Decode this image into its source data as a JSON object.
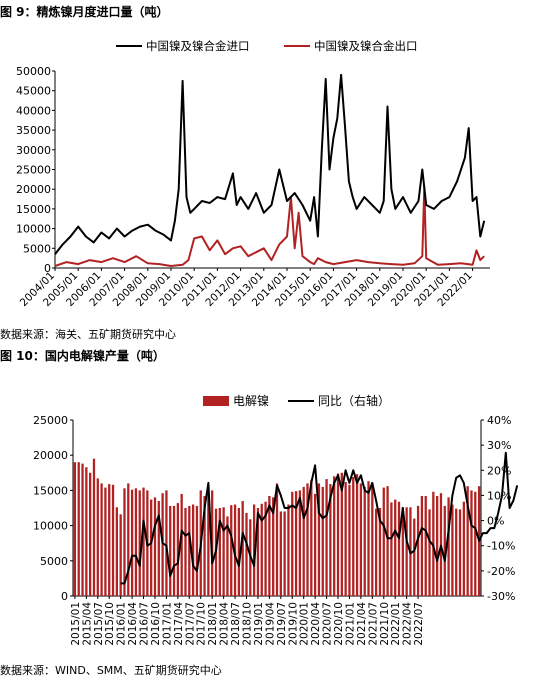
{
  "figure9": {
    "title": "图 9：精炼镍月度进口量（吨）",
    "source": "数据来源：海关、五矿期货研究中心",
    "chart_data": {
      "type": "line",
      "title": "",
      "legend_position": "top",
      "y_ticks": [
        "0",
        "5000",
        "10000",
        "15000",
        "20000",
        "25000",
        "30000",
        "35000",
        "40000",
        "45000",
        "50000"
      ],
      "ylim": [
        0,
        50000
      ],
      "x_ticks": [
        "2004/01",
        "2005/01",
        "2006/01",
        "2007/01",
        "2008/01",
        "2009/01",
        "2010/01",
        "2011/01",
        "2012/01",
        "2013/01",
        "2014/01",
        "2015/01",
        "2016/01",
        "2017/01",
        "2018/01",
        "2019/01",
        "2020/01",
        "2021/01",
        "2022/01"
      ],
      "series": [
        {
          "name": "中国镍及镍合金进口",
          "color": "#000000",
          "x": [
            2004.0,
            2004.33,
            2004.67,
            2005.0,
            2005.33,
            2005.67,
            2006.0,
            2006.33,
            2006.67,
            2007.0,
            2007.33,
            2007.67,
            2008.0,
            2008.33,
            2008.67,
            2009.0,
            2009.17,
            2009.33,
            2009.5,
            2009.67,
            2009.83,
            2010.0,
            2010.33,
            2010.67,
            2011.0,
            2011.33,
            2011.67,
            2011.83,
            2012.0,
            2012.33,
            2012.67,
            2013.0,
            2013.33,
            2013.67,
            2014.0,
            2014.33,
            2014.67,
            2015.0,
            2015.17,
            2015.33,
            2015.5,
            2015.67,
            2015.83,
            2016.0,
            2016.17,
            2016.33,
            2016.5,
            2016.67,
            2016.83,
            2017.0,
            2017.33,
            2017.67,
            2018.0,
            2018.17,
            2018.33,
            2018.5,
            2018.67,
            2019.0,
            2019.33,
            2019.67,
            2019.83,
            2020.0,
            2020.33,
            2020.67,
            2021.0,
            2021.33,
            2021.67,
            2021.83,
            2022.0,
            2022.17,
            2022.33,
            2022.5
          ],
          "values": [
            3500,
            6000,
            8000,
            10500,
            8000,
            6500,
            9000,
            7500,
            10000,
            8000,
            9500,
            10500,
            11000,
            9500,
            8500,
            7000,
            12000,
            20000,
            47500,
            18000,
            14000,
            15000,
            17000,
            16500,
            18000,
            17500,
            24000,
            16000,
            18000,
            15000,
            19000,
            14000,
            16000,
            25000,
            17000,
            19000,
            16000,
            12000,
            18000,
            8000,
            30000,
            48000,
            25000,
            33000,
            38000,
            49000,
            36000,
            22000,
            18000,
            15000,
            18000,
            16000,
            14000,
            17000,
            41000,
            20000,
            15000,
            18000,
            14000,
            17000,
            25000,
            16000,
            15000,
            17000,
            18000,
            22000,
            28000,
            35500,
            17000,
            18000,
            8000,
            12000
          ]
        },
        {
          "name": "中国镍及镍合金出口",
          "color": "#b22222",
          "x": [
            2004.0,
            2004.5,
            2005.0,
            2005.5,
            2006.0,
            2006.5,
            2007.0,
            2007.5,
            2008.0,
            2008.5,
            2009.0,
            2009.5,
            2009.75,
            2010.0,
            2010.33,
            2010.67,
            2011.0,
            2011.33,
            2011.67,
            2012.0,
            2012.33,
            2012.67,
            2013.0,
            2013.33,
            2013.67,
            2014.0,
            2014.17,
            2014.33,
            2014.5,
            2014.67,
            2015.0,
            2015.17,
            2015.33,
            2015.67,
            2016.0,
            2016.5,
            2017.0,
            2017.5,
            2018.0,
            2018.5,
            2019.0,
            2019.5,
            2019.83,
            2019.92,
            2020.0,
            2020.5,
            2021.0,
            2021.5,
            2022.0,
            2022.17,
            2022.33,
            2022.5
          ],
          "values": [
            500,
            1500,
            1000,
            2000,
            1500,
            2500,
            1500,
            3000,
            1200,
            1000,
            500,
            800,
            2000,
            7500,
            8000,
            4500,
            7000,
            3500,
            5000,
            5500,
            3000,
            4000,
            5000,
            2000,
            6000,
            8000,
            18000,
            5000,
            14000,
            3000,
            1500,
            1000,
            2500,
            1500,
            1000,
            1500,
            2000,
            1500,
            1200,
            1000,
            800,
            1200,
            3000,
            20500,
            2500,
            800,
            1000,
            1200,
            800,
            4500,
            2000,
            3000
          ]
        }
      ]
    }
  },
  "figure10": {
    "title": "图 10：国内电解镍产量（吨）",
    "source": "数据来源：WIND、SMM、五矿期货研究中心",
    "chart_data": {
      "type": "bar",
      "title": "",
      "legend_position": "top",
      "y_ticks": [
        "0",
        "5000",
        "10000",
        "15000",
        "20000",
        "25000"
      ],
      "ylim": [
        0,
        25000
      ],
      "y2_ticks": [
        "-30%",
        "-20%",
        "-10%",
        "0%",
        "10%",
        "20%",
        "30%",
        "40%"
      ],
      "y2lim": [
        -30,
        40
      ],
      "x_ticks": [
        "2015/01",
        "2015/04",
        "2015/07",
        "2015/10",
        "2016/01",
        "2016/04",
        "2016/07",
        "2016/10",
        "2017/01",
        "2017/04",
        "2017/07",
        "2017/10",
        "2018/01",
        "2018/04",
        "2018/07",
        "2018/10",
        "2019/01",
        "2019/04",
        "2019/07",
        "2019/10",
        "2020/01",
        "2020/04",
        "2020/07",
        "2020/10",
        "2021/01",
        "2021/04",
        "2021/07",
        "2021/10",
        "2022/01",
        "2022/04",
        "2022/07"
      ],
      "series": [
        {
          "name": "电解镍",
          "kind": "bar",
          "axis": "left",
          "color": "#b22222",
          "values": [
            19000,
            19000,
            18800,
            18300,
            17500,
            19500,
            16700,
            16000,
            15400,
            15900,
            15800,
            12600,
            11600,
            15300,
            16000,
            15100,
            15300,
            15000,
            15400,
            15000,
            13700,
            14000,
            13500,
            14600,
            15000,
            12800,
            12800,
            13200,
            14500,
            12500,
            12800,
            13000,
            12800,
            15000,
            14200,
            15400,
            15000,
            12400,
            12500,
            12600,
            11300,
            12900,
            13000,
            12500,
            13500,
            11800,
            10900,
            13000,
            12500,
            13100,
            13400,
            14200,
            14000,
            16000,
            12000,
            12000,
            13000,
            14800,
            14900,
            15000,
            15500,
            16000,
            16500,
            14500,
            16000,
            15500,
            16600,
            15900,
            17000,
            17400,
            17500,
            16200,
            15800,
            16900,
            17300,
            16000,
            15500,
            16300,
            16100,
            12400,
            12500,
            15400,
            15600,
            13300,
            13700,
            13400,
            12600,
            12600,
            12600,
            11000,
            12800,
            14200,
            14200,
            12300,
            14800,
            14200,
            14600,
            12800,
            14000,
            13000,
            12400,
            12300,
            13400,
            15600,
            15000,
            14800,
            15600
          ]
        },
        {
          "name": "同比（右轴）",
          "kind": "line",
          "axis": "right",
          "color": "#000000",
          "start_index": 12,
          "values": [
            -25,
            -25,
            -20,
            -14,
            -14,
            -18,
            0,
            -10,
            -9,
            -2,
            2,
            -9,
            -10,
            -22,
            -18,
            -17,
            -4,
            -6,
            -5,
            -18,
            -20,
            -10,
            5,
            15,
            -17,
            -12,
            0,
            -4,
            -2,
            -6,
            -14,
            -18,
            -5,
            -9,
            -14,
            -18,
            3,
            0,
            2,
            6,
            3,
            14,
            10,
            5,
            5,
            6,
            5,
            9,
            1,
            5,
            15,
            22,
            3,
            1,
            2,
            9,
            15,
            18,
            12,
            20,
            15,
            20,
            15,
            18,
            12,
            11,
            15,
            8,
            0,
            -2,
            -7,
            -7,
            -4,
            -7,
            5,
            -8,
            -13,
            -12,
            -7,
            -3,
            -4,
            -8,
            -10,
            -16,
            -10,
            -16,
            -4,
            10,
            17,
            18,
            15,
            6,
            -2,
            -3,
            -8,
            -5,
            -5,
            -3,
            -3,
            3,
            10,
            27,
            5,
            8,
            14
          ]
        }
      ]
    }
  }
}
